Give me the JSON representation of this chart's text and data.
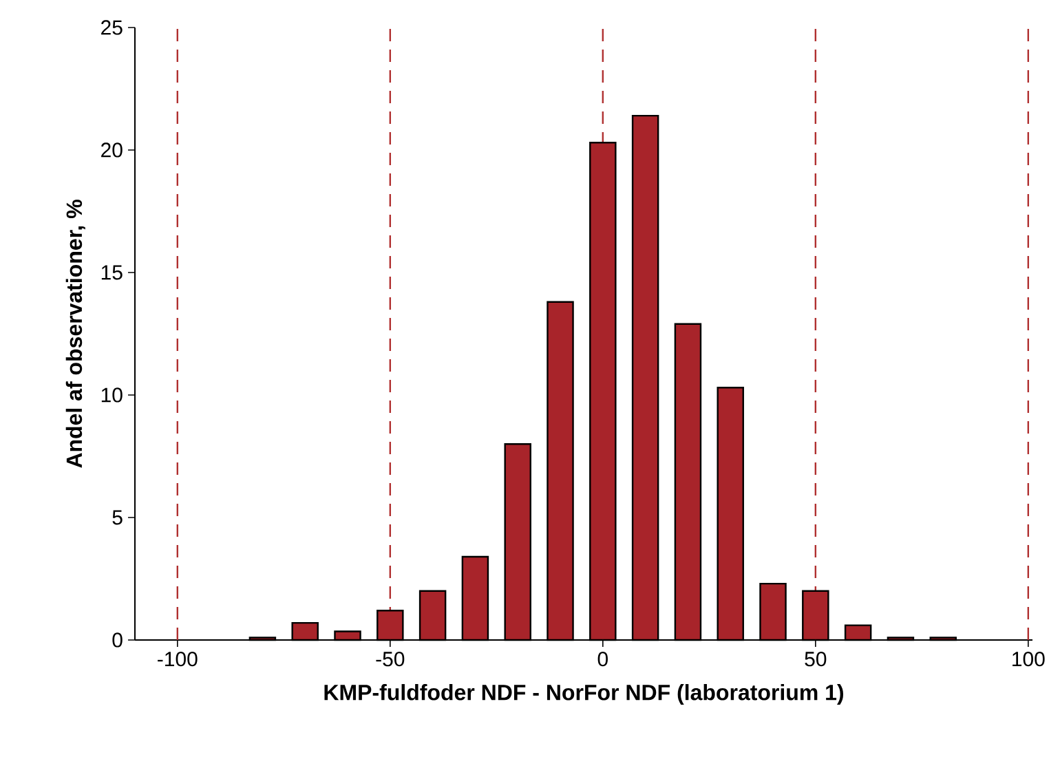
{
  "chart_data": {
    "type": "bar",
    "xlabel": "KMP-fuldfoder NDF - NorFor NDF (laboratorium 1)",
    "ylabel": "Andel af observationer, %",
    "x": [
      -80,
      -70,
      -60,
      -50,
      -40,
      -30,
      -20,
      -10,
      0,
      10,
      20,
      30,
      40,
      50,
      60,
      70,
      80
    ],
    "values": [
      0.1,
      0.7,
      0.35,
      1.2,
      2.0,
      3.4,
      8.0,
      13.8,
      20.3,
      21.4,
      12.9,
      10.3,
      2.3,
      2.0,
      0.6,
      0.1,
      0.1
    ],
    "color": "#a8242a",
    "xlim": [
      -110,
      101
    ],
    "xticks": [
      -100,
      -50,
      0,
      50,
      100
    ],
    "ylim": [
      0,
      25
    ],
    "yticks": [
      0,
      5,
      10,
      15,
      20,
      25
    ],
    "ref_lines": [
      {
        "axis": "x",
        "value": -100,
        "color": "#b03030",
        "line_style": "dashed"
      },
      {
        "axis": "x",
        "value": -50,
        "color": "#b03030",
        "line_style": "dashed"
      },
      {
        "axis": "x",
        "value": 0,
        "color": "#b03030",
        "line_style": "dashed"
      },
      {
        "axis": "x",
        "value": 50,
        "color": "#b03030",
        "line_style": "dashed"
      },
      {
        "axis": "x",
        "value": 100,
        "color": "#b03030",
        "line_style": "dashed"
      }
    ]
  }
}
